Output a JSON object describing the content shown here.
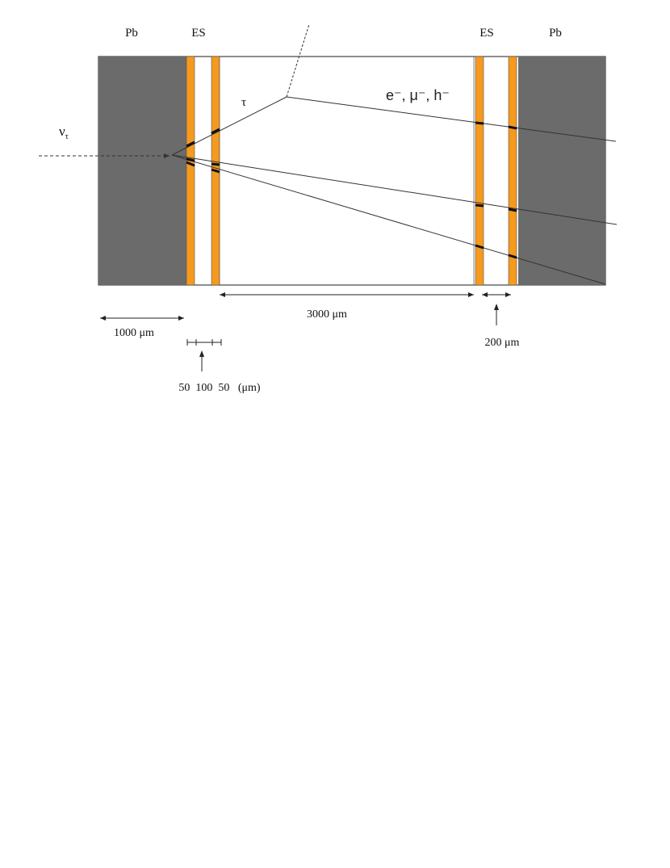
{
  "figure": {
    "labels": {
      "pb_left": "Pb",
      "es_left": "ES",
      "es_right": "ES",
      "pb_right": "Pb",
      "tau": "τ",
      "decay_products": "e⁻, μ⁻, h⁻",
      "nu": "ν",
      "nu_sub": "τ"
    },
    "dimensions": {
      "pb_thickness": "1000 μm",
      "gap": "3000 μm",
      "es_unit": "200 μm",
      "emulsion_layers": "50  100  50   (μm)"
    },
    "colors": {
      "lead": "#6b6b6b",
      "emulsion": "#f59a1e",
      "background": "#ffffff",
      "line": "#333333"
    }
  }
}
